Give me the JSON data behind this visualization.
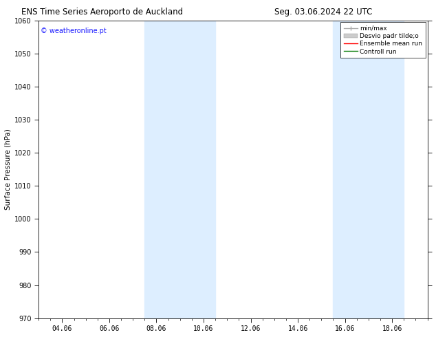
{
  "title_left": "ENS Time Series Aeroporto de Auckland",
  "title_right": "Seg. 03.06.2024 22 UTC",
  "ylabel": "Surface Pressure (hPa)",
  "ylim": [
    970,
    1060
  ],
  "yticks": [
    970,
    980,
    990,
    1000,
    1010,
    1020,
    1030,
    1040,
    1050,
    1060
  ],
  "xtick_labels": [
    "04.06",
    "06.06",
    "08.06",
    "10.06",
    "12.06",
    "14.06",
    "16.06",
    "18.06"
  ],
  "watermark": "© weatheronline.pt",
  "watermark_color": "#1a1aff",
  "background_color": "#ffffff",
  "plot_bg_color": "#ffffff",
  "shaded_color": "#ddeeff",
  "title_fontsize": 8.5,
  "axis_label_fontsize": 7.5,
  "tick_fontsize": 7,
  "watermark_fontsize": 7,
  "legend_fontsize": 6.5,
  "legend_label_minmax": "min/max",
  "legend_label_desvio": "Desvio padr tilde;o",
  "legend_label_ensemble": "Ensemble mean run",
  "legend_label_control": "Controll run",
  "minmax_color": "#aaaaaa",
  "desvio_color": "#cccccc",
  "ensemble_color": "#ff0000",
  "control_color": "#007700"
}
